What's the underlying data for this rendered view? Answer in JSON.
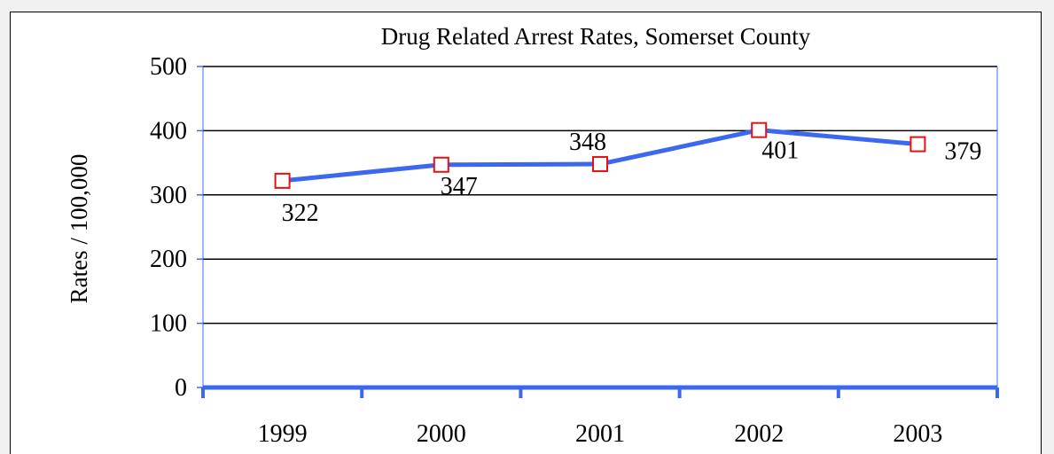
{
  "chart_data": {
    "type": "line",
    "title": "Drug Related Arrest Rates,  Somerset County",
    "xlabel": "",
    "ylabel": "Rates / 100,000",
    "categories": [
      "1999",
      "2000",
      "2001",
      "2002",
      "2003"
    ],
    "series": [
      {
        "values": [
          322,
          347,
          348,
          401,
          379
        ],
        "color": "#3c68f0"
      }
    ],
    "data_labels": [
      "322",
      "347",
      "348",
      "401",
      "379"
    ],
    "ylim": [
      0,
      500
    ],
    "yticks": [
      0,
      100,
      200,
      300,
      400,
      500
    ],
    "ytick_labels": [
      "0",
      "100",
      "200",
      "300",
      "400",
      "500"
    ],
    "grid": true,
    "legend": "none",
    "colors": {
      "line": "#3c68f0",
      "marker": "#e81010",
      "grid": "#000000",
      "axis": "#3c68f0"
    }
  }
}
